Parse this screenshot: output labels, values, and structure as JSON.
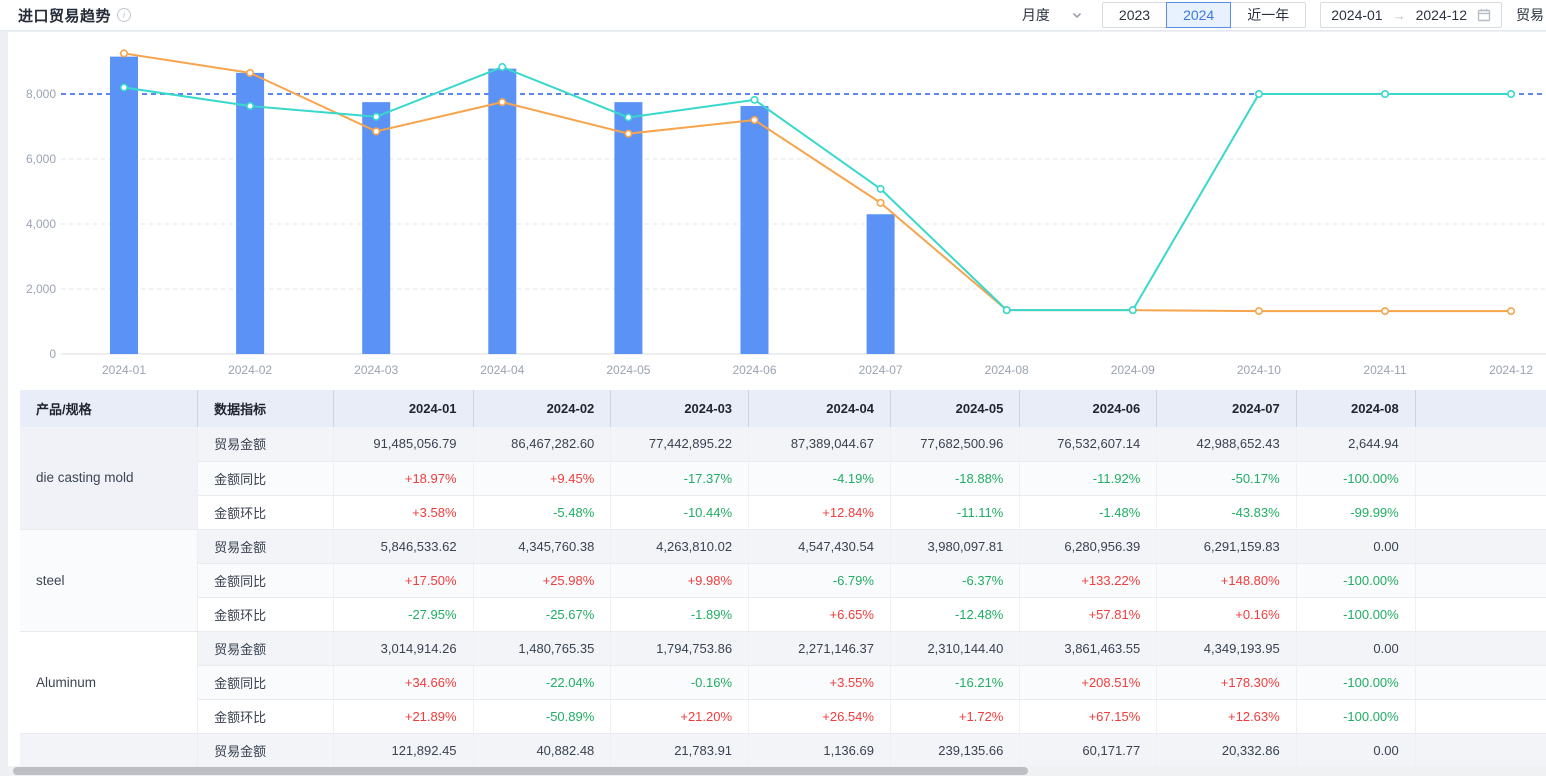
{
  "header": {
    "title": "进口贸易趋势",
    "controls": {
      "frequency_label": "月度",
      "year_2023": "2023",
      "year_2024": "2024",
      "selected_year": "2024",
      "recent_label": "近一年",
      "date_start": "2024-01",
      "date_end": "2024-12",
      "right_partial": "贸易"
    }
  },
  "colors": {
    "bar": "#5b92f5",
    "line_orange": "#f7a44c",
    "line_teal": "#38d8cc",
    "reference_line": "#5b87f0",
    "grid": "#e2e5ea",
    "axis": "#d8dce2",
    "axis_text": "#9aa3b2",
    "positive": "#f23c3c",
    "negative": "#21ad64"
  },
  "chart_data": {
    "type": "bar+line",
    "categories": [
      "2024-01",
      "2024-02",
      "2024-03",
      "2024-04",
      "2024-05",
      "2024-06",
      "2024-07",
      "2024-08",
      "2024-09",
      "2024-10",
      "2024-11",
      "2024-12"
    ],
    "series": [
      {
        "name": "trade-volume-bar",
        "type": "bar",
        "color": "#5b92f5",
        "values": [
          9150,
          8650,
          7750,
          8780,
          7750,
          7630,
          4300,
          null,
          null,
          null,
          null,
          null
        ]
      },
      {
        "name": "line-orange",
        "type": "line",
        "color": "#f7a44c",
        "values": [
          9250,
          8650,
          6850,
          7750,
          6780,
          7200,
          4650,
          1350,
          1350,
          1320,
          1320,
          1320
        ]
      },
      {
        "name": "line-teal",
        "type": "line",
        "color": "#38d8cc",
        "values": [
          8200,
          7630,
          7300,
          8830,
          7280,
          7820,
          5080,
          1350,
          1350,
          8000,
          8000,
          8000
        ]
      }
    ],
    "reference_line": 8000,
    "yticks": [
      0,
      2000,
      4000,
      6000,
      8000
    ],
    "ylim": [
      0,
      9500
    ],
    "grid": "dashed",
    "legend": "none"
  },
  "table": {
    "columns": [
      "产品/规格",
      "数据指标",
      "2024-01",
      "2024-02",
      "2024-03",
      "2024-04",
      "2024-05",
      "2024-06",
      "2024-07",
      "2024-08"
    ],
    "metric_labels": {
      "amount": "贸易金额",
      "yoy": "金额同比",
      "mom": "金额环比"
    },
    "products": [
      {
        "name": "die casting mold",
        "amount": [
          "91,485,056.79",
          "86,467,282.60",
          "77,442,895.22",
          "87,389,044.67",
          "77,682,500.96",
          "76,532,607.14",
          "42,988,652.43",
          "2,644.94"
        ],
        "yoy": [
          "+18.97%",
          "+9.45%",
          "-17.37%",
          "-4.19%",
          "-18.88%",
          "-11.92%",
          "-50.17%",
          "-100.00%"
        ],
        "mom": [
          "+3.58%",
          "-5.48%",
          "-10.44%",
          "+12.84%",
          "-11.11%",
          "-1.48%",
          "-43.83%",
          "-99.99%"
        ]
      },
      {
        "name": "steel",
        "amount": [
          "5,846,533.62",
          "4,345,760.38",
          "4,263,810.02",
          "4,547,430.54",
          "3,980,097.81",
          "6,280,956.39",
          "6,291,159.83",
          "0.00"
        ],
        "yoy": [
          "+17.50%",
          "+25.98%",
          "+9.98%",
          "-6.79%",
          "-6.37%",
          "+133.22%",
          "+148.80%",
          "-100.00%"
        ],
        "mom": [
          "-27.95%",
          "-25.67%",
          "-1.89%",
          "+6.65%",
          "-12.48%",
          "+57.81%",
          "+0.16%",
          "-100.00%"
        ]
      },
      {
        "name": "Aluminum",
        "amount": [
          "3,014,914.26",
          "1,480,765.35",
          "1,794,753.86",
          "2,271,146.37",
          "2,310,144.40",
          "3,861,463.55",
          "4,349,193.95",
          "0.00"
        ],
        "yoy": [
          "+34.66%",
          "-22.04%",
          "-0.16%",
          "+3.55%",
          "-16.21%",
          "+208.51%",
          "+178.30%",
          "-100.00%"
        ],
        "mom": [
          "+21.89%",
          "-50.89%",
          "+21.20%",
          "+26.54%",
          "+1.72%",
          "+67.15%",
          "+12.63%",
          "-100.00%"
        ]
      },
      {
        "name": "",
        "amount": [
          "121,892.45",
          "40,882.48",
          "21,783.91",
          "1,136.69",
          "239,135.66",
          "60,171.77",
          "20,332.86",
          "0.00"
        ]
      }
    ]
  }
}
